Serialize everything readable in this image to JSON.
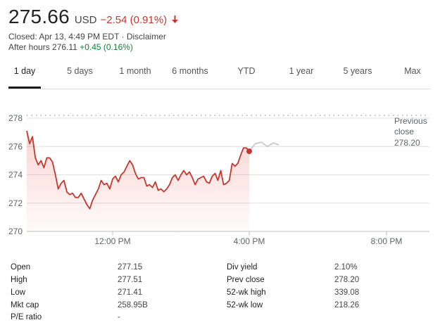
{
  "quote": {
    "price": "275.66",
    "currency": "USD",
    "change": "−2.54 (0.91%)",
    "closed": "Closed: Apr 13, 4:49 PM EDT · Disclaimer",
    "after_hours_label": "After hours 276.11",
    "after_hours_change": "+0.45 (0.16%)"
  },
  "tabs": [
    "1 day",
    "5 days",
    "1 month",
    "6 months",
    "YTD",
    "1 year",
    "5 years",
    "Max"
  ],
  "active_tab": "1 day",
  "colors": {
    "negative": "#c5372c",
    "positive": "#188038",
    "after_hours_line": "#c8c8c8",
    "grid": "#e0e0e0"
  },
  "chart_data": {
    "type": "line",
    "title": "",
    "xlabel": "",
    "ylabel": "",
    "ylim": [
      270,
      278
    ],
    "xlim": [
      "9:30 AM",
      "8:00 PM"
    ],
    "y_ticks": [
      "278",
      "276",
      "274",
      "272",
      "270"
    ],
    "x_ticks": [
      "12:00 PM",
      "4:00 PM",
      "8:00 PM"
    ],
    "reference_line": {
      "label_line1": "Previous",
      "label_line2": "close",
      "value": "278.20"
    },
    "grid": "horizontal",
    "series": [
      {
        "session": "regular",
        "x": [
          "9:30 AM",
          "9:35 AM",
          "9:40 AM",
          "9:45 AM",
          "9:50 AM",
          "9:55 AM",
          "10:00 AM",
          "10:05 AM",
          "10:10 AM",
          "10:15 AM",
          "10:20 AM",
          "10:25 AM",
          "10:30 AM",
          "10:35 AM",
          "10:40 AM",
          "10:45 AM",
          "10:50 AM",
          "10:55 AM",
          "11:00 AM",
          "11:05 AM",
          "11:10 AM",
          "11:15 AM",
          "11:20 AM",
          "11:25 AM",
          "11:30 AM",
          "11:35 AM",
          "11:40 AM",
          "11:45 AM",
          "11:50 AM",
          "11:55 AM",
          "12:00 PM",
          "12:05 PM",
          "12:10 PM",
          "12:15 PM",
          "12:20 PM",
          "12:25 PM",
          "12:30 PM",
          "12:35 PM",
          "12:40 PM",
          "12:45 PM",
          "12:50 PM",
          "12:55 PM",
          "1:00 PM",
          "1:05 PM",
          "1:10 PM",
          "1:15 PM",
          "1:20 PM",
          "1:25 PM",
          "1:30 PM",
          "1:35 PM",
          "1:40 PM",
          "1:45 PM",
          "1:50 PM",
          "1:55 PM",
          "2:00 PM",
          "2:05 PM",
          "2:10 PM",
          "2:15 PM",
          "2:20 PM",
          "2:25 PM",
          "2:30 PM",
          "2:35 PM",
          "2:40 PM",
          "2:45 PM",
          "2:50 PM",
          "2:55 PM",
          "3:00 PM",
          "3:05 PM",
          "3:10 PM",
          "3:15 PM",
          "3:20 PM",
          "3:25 PM",
          "3:30 PM",
          "3:35 PM",
          "3:40 PM",
          "3:45 PM",
          "3:50 PM",
          "3:55 PM",
          "4:00 PM"
        ],
        "values": [
          277.1,
          276.2,
          276.7,
          275.2,
          274.7,
          275.0,
          274.5,
          275.2,
          275.2,
          274.9,
          274.0,
          273.0,
          273.4,
          273.6,
          272.8,
          272.6,
          272.7,
          272.4,
          272.4,
          272.7,
          272.3,
          271.9,
          271.6,
          272.2,
          272.6,
          273.0,
          273.6,
          273.3,
          273.4,
          273.0,
          273.7,
          273.9,
          273.5,
          274.0,
          274.2,
          274.6,
          275.0,
          274.7,
          274.1,
          273.7,
          273.8,
          273.8,
          273.2,
          273.3,
          273.1,
          273.5,
          272.9,
          273.0,
          272.8,
          273.0,
          273.3,
          273.8,
          274.0,
          273.6,
          274.0,
          274.3,
          274.0,
          274.2,
          273.8,
          273.3,
          273.7,
          273.8,
          273.9,
          273.5,
          273.4,
          273.9,
          274.1,
          273.6,
          274.3,
          273.3,
          273.4,
          273.6,
          274.8,
          274.6,
          274.8,
          275.4,
          275.9,
          275.9,
          275.66
        ]
      },
      {
        "session": "after hours",
        "x": [
          "4:00 PM",
          "4:10 PM",
          "4:20 PM",
          "4:30 PM",
          "4:40 PM",
          "4:49 PM"
        ],
        "values": [
          275.66,
          276.2,
          276.3,
          276.0,
          276.25,
          276.11
        ]
      }
    ]
  },
  "stats": [
    {
      "label": "Open",
      "value": "277.15"
    },
    {
      "label": "High",
      "value": "277.51"
    },
    {
      "label": "Low",
      "value": "271.41"
    },
    {
      "label": "Mkt cap",
      "value": "258.95B"
    },
    {
      "label": "P/E ratio",
      "value": "-"
    },
    {
      "label": "Div yield",
      "value": "2.10%"
    },
    {
      "label": "Prev close",
      "value": "278.20"
    },
    {
      "label": "52-wk high",
      "value": "339.08"
    },
    {
      "label": "52-wk low",
      "value": "218.26"
    }
  ]
}
